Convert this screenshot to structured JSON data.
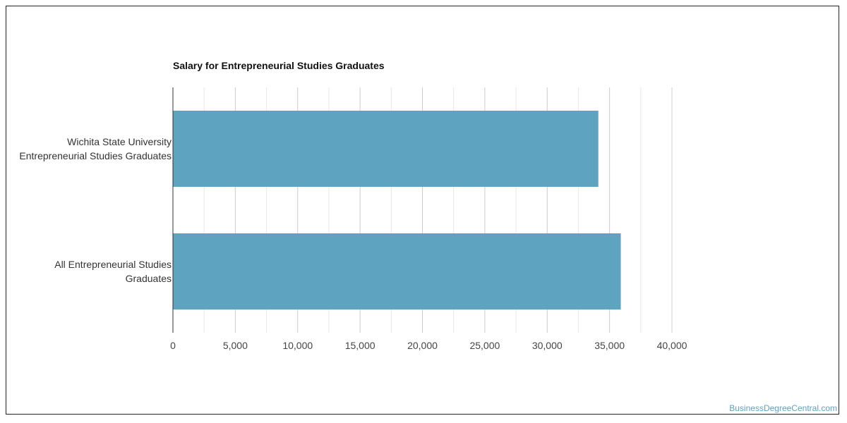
{
  "chart_data": {
    "type": "bar",
    "orientation": "horizontal",
    "title": "Salary for Entrepreneurial Studies Graduates",
    "categories": [
      [
        "Wichita State University",
        "Entrepreneurial Studies Graduates"
      ],
      [
        "All Entrepreneurial Studies",
        "Graduates"
      ]
    ],
    "values": [
      34100,
      35900
    ],
    "xlim": [
      0,
      40000
    ],
    "xticks": [
      0,
      5000,
      10000,
      15000,
      20000,
      25000,
      30000,
      35000,
      40000
    ],
    "xtick_labels": [
      "0",
      "5,000",
      "10,000",
      "15,000",
      "20,000",
      "25,000",
      "30,000",
      "35,000",
      "40,000"
    ],
    "grid": true,
    "bar_color": "#5ea3bf"
  },
  "watermark": "BusinessDegreeCentral.com"
}
